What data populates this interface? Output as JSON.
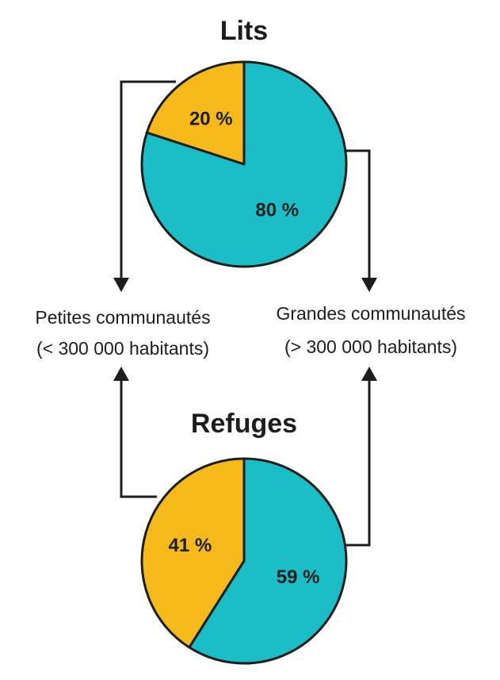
{
  "chart_data": [
    {
      "type": "pie",
      "title": "Lits",
      "categories": [
        "Petites communautés",
        "Grandes communautés"
      ],
      "values": [
        20,
        80
      ],
      "labels": [
        "20 %",
        "80 %"
      ],
      "colors": [
        "#f5b919",
        "#1abec6"
      ]
    },
    {
      "type": "pie",
      "title": "Refuges",
      "categories": [
        "Petites communautés",
        "Grandes communautés"
      ],
      "values": [
        41,
        59
      ],
      "labels": [
        "41 %",
        "59 %"
      ],
      "colors": [
        "#f5b919",
        "#1abec6"
      ]
    }
  ],
  "groups": {
    "small": {
      "line1": "Petites communautés",
      "line2": "(< 300 000 habitants)"
    },
    "large": {
      "line1": "Grandes communautés",
      "line2": "(> 300 000 habitants)"
    }
  },
  "colors": {
    "small": "#f5b919",
    "large": "#1abec6",
    "ink": "#1d1d1b"
  }
}
